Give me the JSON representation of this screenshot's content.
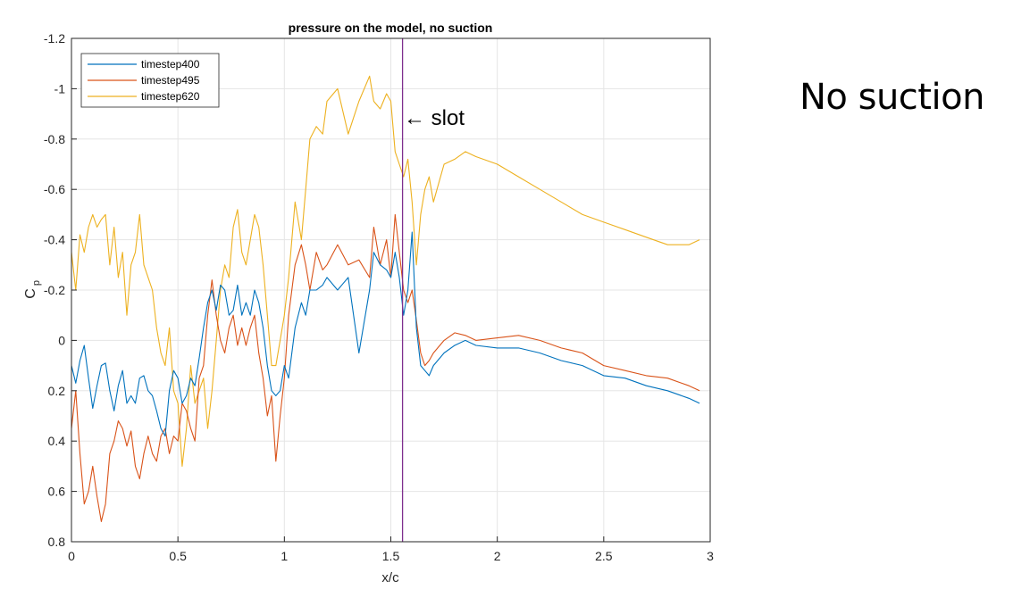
{
  "side_title": "No suction",
  "colors": {
    "series_1": "#0072BD",
    "series_2": "#D95319",
    "series_3": "#EDB120",
    "slot_line": "#7E2F8E",
    "grid": "#e5e5e5",
    "axes": "#262626"
  },
  "chart_data": {
    "type": "line",
    "title": "pressure on the model, no suction",
    "xlabel": "x/c",
    "ylabel": "C",
    "ylabel_sub": "p",
    "xlim": [
      0,
      3
    ],
    "ylim": [
      -1.2,
      0.8
    ],
    "y_reversed": true,
    "grid": true,
    "legend_location": "top-left",
    "x_ticks": [
      0,
      0.5,
      1,
      1.5,
      2,
      2.5,
      3
    ],
    "x_tick_labels": [
      "0",
      "0.5",
      "1",
      "1.5",
      "2",
      "2.5",
      "3"
    ],
    "y_ticks": [
      -1.2,
      -1,
      -0.8,
      -0.6,
      -0.4,
      -0.2,
      0,
      0.2,
      0.4,
      0.6,
      0.8
    ],
    "y_tick_labels": [
      "-1.2",
      "-1",
      "-0.8",
      "-0.6",
      "-0.4",
      "-0.2",
      "0",
      "0.2",
      "0.4",
      "0.6",
      "0.8"
    ],
    "annotation": {
      "text": "← slot",
      "x": 1.58,
      "y": -0.9
    },
    "slot_x": 1.555,
    "series": [
      {
        "name": "timestep400",
        "x": [
          0,
          0.02,
          0.04,
          0.06,
          0.08,
          0.1,
          0.12,
          0.14,
          0.16,
          0.18,
          0.2,
          0.22,
          0.24,
          0.26,
          0.28,
          0.3,
          0.32,
          0.34,
          0.36,
          0.38,
          0.4,
          0.42,
          0.44,
          0.46,
          0.48,
          0.5,
          0.52,
          0.54,
          0.56,
          0.58,
          0.6,
          0.62,
          0.64,
          0.66,
          0.68,
          0.7,
          0.72,
          0.74,
          0.76,
          0.78,
          0.8,
          0.82,
          0.84,
          0.86,
          0.88,
          0.9,
          0.92,
          0.94,
          0.96,
          0.98,
          1.0,
          1.02,
          1.05,
          1.08,
          1.1,
          1.12,
          1.15,
          1.18,
          1.2,
          1.25,
          1.3,
          1.35,
          1.4,
          1.42,
          1.45,
          1.48,
          1.5,
          1.52,
          1.54,
          1.56,
          1.58,
          1.6,
          1.62,
          1.64,
          1.66,
          1.68,
          1.7,
          1.75,
          1.8,
          1.85,
          1.9,
          2.0,
          2.1,
          2.2,
          2.3,
          2.4,
          2.5,
          2.6,
          2.7,
          2.8,
          2.9,
          2.95
        ],
        "y": [
          0.1,
          0.17,
          0.08,
          0.02,
          0.15,
          0.27,
          0.18,
          0.1,
          0.09,
          0.2,
          0.28,
          0.18,
          0.12,
          0.25,
          0.22,
          0.25,
          0.15,
          0.14,
          0.2,
          0.22,
          0.28,
          0.35,
          0.38,
          0.2,
          0.12,
          0.15,
          0.25,
          0.22,
          0.15,
          0.18,
          0.07,
          -0.05,
          -0.15,
          -0.2,
          -0.12,
          -0.22,
          -0.2,
          -0.1,
          -0.12,
          -0.22,
          -0.1,
          -0.15,
          -0.1,
          -0.2,
          -0.15,
          -0.05,
          0.1,
          0.2,
          0.22,
          0.2,
          0.1,
          0.15,
          -0.05,
          -0.15,
          -0.1,
          -0.2,
          -0.2,
          -0.22,
          -0.25,
          -0.2,
          -0.25,
          0.05,
          -0.2,
          -0.35,
          -0.3,
          -0.28,
          -0.25,
          -0.35,
          -0.25,
          -0.1,
          -0.2,
          -0.43,
          -0.05,
          0.1,
          0.12,
          0.14,
          0.1,
          0.05,
          0.02,
          0.0,
          0.02,
          0.03,
          0.03,
          0.05,
          0.08,
          0.1,
          0.14,
          0.15,
          0.18,
          0.2,
          0.23,
          0.25
        ]
      },
      {
        "name": "timestep495",
        "x": [
          0,
          0.02,
          0.04,
          0.06,
          0.08,
          0.1,
          0.12,
          0.14,
          0.16,
          0.18,
          0.2,
          0.22,
          0.24,
          0.26,
          0.28,
          0.3,
          0.32,
          0.34,
          0.36,
          0.38,
          0.4,
          0.42,
          0.44,
          0.46,
          0.48,
          0.5,
          0.52,
          0.54,
          0.56,
          0.58,
          0.6,
          0.62,
          0.64,
          0.66,
          0.68,
          0.7,
          0.72,
          0.74,
          0.76,
          0.78,
          0.8,
          0.82,
          0.84,
          0.86,
          0.88,
          0.9,
          0.92,
          0.94,
          0.96,
          0.98,
          1.0,
          1.02,
          1.05,
          1.08,
          1.1,
          1.12,
          1.15,
          1.18,
          1.2,
          1.25,
          1.3,
          1.35,
          1.4,
          1.42,
          1.45,
          1.48,
          1.5,
          1.52,
          1.54,
          1.56,
          1.58,
          1.6,
          1.62,
          1.64,
          1.66,
          1.68,
          1.7,
          1.75,
          1.8,
          1.85,
          1.9,
          2.0,
          2.1,
          2.2,
          2.3,
          2.4,
          2.5,
          2.6,
          2.7,
          2.8,
          2.9,
          2.95
        ],
        "y": [
          0.35,
          0.2,
          0.45,
          0.65,
          0.6,
          0.5,
          0.62,
          0.72,
          0.65,
          0.45,
          0.4,
          0.32,
          0.35,
          0.42,
          0.36,
          0.5,
          0.55,
          0.45,
          0.38,
          0.45,
          0.48,
          0.38,
          0.35,
          0.45,
          0.38,
          0.4,
          0.25,
          0.28,
          0.35,
          0.4,
          0.15,
          0.1,
          -0.1,
          -0.24,
          -0.1,
          0.0,
          0.05,
          -0.05,
          -0.1,
          0.02,
          -0.05,
          0.02,
          -0.05,
          -0.1,
          0.05,
          0.15,
          0.3,
          0.22,
          0.48,
          0.3,
          0.15,
          -0.1,
          -0.3,
          -0.38,
          -0.3,
          -0.2,
          -0.35,
          -0.28,
          -0.3,
          -0.38,
          -0.3,
          -0.32,
          -0.25,
          -0.45,
          -0.3,
          -0.4,
          -0.25,
          -0.5,
          -0.35,
          -0.2,
          -0.15,
          -0.2,
          -0.08,
          0.05,
          0.1,
          0.08,
          0.05,
          0.0,
          -0.03,
          -0.02,
          0.0,
          -0.01,
          -0.02,
          0.0,
          0.03,
          0.05,
          0.1,
          0.12,
          0.14,
          0.15,
          0.18,
          0.2
        ]
      },
      {
        "name": "timestep620",
        "x": [
          0,
          0.02,
          0.04,
          0.06,
          0.08,
          0.1,
          0.12,
          0.14,
          0.16,
          0.18,
          0.2,
          0.22,
          0.24,
          0.26,
          0.28,
          0.3,
          0.32,
          0.34,
          0.36,
          0.38,
          0.4,
          0.42,
          0.44,
          0.46,
          0.48,
          0.5,
          0.52,
          0.54,
          0.56,
          0.58,
          0.6,
          0.62,
          0.64,
          0.66,
          0.68,
          0.7,
          0.72,
          0.74,
          0.76,
          0.78,
          0.8,
          0.82,
          0.84,
          0.86,
          0.88,
          0.9,
          0.92,
          0.94,
          0.96,
          0.98,
          1.0,
          1.02,
          1.05,
          1.08,
          1.1,
          1.12,
          1.15,
          1.18,
          1.2,
          1.25,
          1.3,
          1.35,
          1.4,
          1.42,
          1.45,
          1.48,
          1.5,
          1.52,
          1.54,
          1.56,
          1.58,
          1.6,
          1.62,
          1.64,
          1.66,
          1.68,
          1.7,
          1.75,
          1.8,
          1.85,
          1.9,
          2.0,
          2.1,
          2.2,
          2.3,
          2.4,
          2.5,
          2.6,
          2.7,
          2.8,
          2.9,
          2.95
        ],
        "y": [
          -0.35,
          -0.2,
          -0.42,
          -0.35,
          -0.45,
          -0.5,
          -0.45,
          -0.48,
          -0.5,
          -0.3,
          -0.45,
          -0.25,
          -0.35,
          -0.1,
          -0.3,
          -0.35,
          -0.5,
          -0.3,
          -0.25,
          -0.2,
          -0.05,
          0.05,
          0.1,
          -0.05,
          0.2,
          0.25,
          0.5,
          0.35,
          0.1,
          0.25,
          0.2,
          0.15,
          0.35,
          0.2,
          0.0,
          -0.2,
          -0.3,
          -0.25,
          -0.45,
          -0.52,
          -0.35,
          -0.3,
          -0.4,
          -0.5,
          -0.45,
          -0.3,
          -0.1,
          0.1,
          0.1,
          0.0,
          -0.1,
          -0.25,
          -0.55,
          -0.4,
          -0.6,
          -0.8,
          -0.85,
          -0.82,
          -0.95,
          -1.0,
          -0.82,
          -0.95,
          -1.05,
          -0.95,
          -0.92,
          -0.98,
          -0.95,
          -0.75,
          -0.7,
          -0.65,
          -0.72,
          -0.55,
          -0.3,
          -0.5,
          -0.6,
          -0.65,
          -0.55,
          -0.7,
          -0.72,
          -0.75,
          -0.73,
          -0.7,
          -0.65,
          -0.6,
          -0.55,
          -0.5,
          -0.47,
          -0.44,
          -0.41,
          -0.38,
          -0.38,
          -0.4
        ]
      }
    ]
  }
}
